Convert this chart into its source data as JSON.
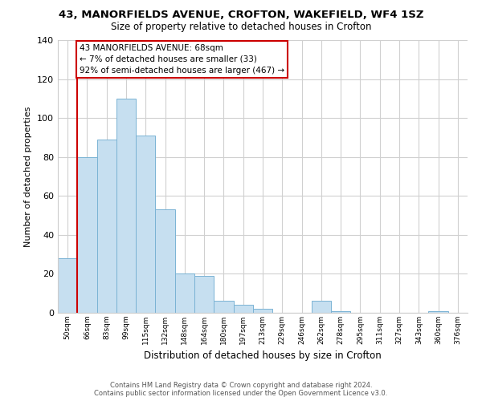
{
  "title": "43, MANORFIELDS AVENUE, CROFTON, WAKEFIELD, WF4 1SZ",
  "subtitle": "Size of property relative to detached houses in Crofton",
  "xlabel": "Distribution of detached houses by size in Crofton",
  "ylabel": "Number of detached properties",
  "bar_color": "#c6dff0",
  "bar_edge_color": "#7ab3d4",
  "bin_labels": [
    "50sqm",
    "66sqm",
    "83sqm",
    "99sqm",
    "115sqm",
    "132sqm",
    "148sqm",
    "164sqm",
    "180sqm",
    "197sqm",
    "213sqm",
    "229sqm",
    "246sqm",
    "262sqm",
    "278sqm",
    "295sqm",
    "311sqm",
    "327sqm",
    "343sqm",
    "360sqm",
    "376sqm"
  ],
  "bar_heights": [
    28,
    80,
    89,
    110,
    91,
    53,
    20,
    19,
    6,
    4,
    2,
    0,
    0,
    6,
    1,
    0,
    0,
    0,
    0,
    1,
    0
  ],
  "ylim": [
    0,
    140
  ],
  "yticks": [
    0,
    20,
    40,
    60,
    80,
    100,
    120,
    140
  ],
  "property_line_x": 1,
  "annotation_title": "43 MANORFIELDS AVENUE: 68sqm",
  "annotation_line1": "← 7% of detached houses are smaller (33)",
  "annotation_line2": "92% of semi-detached houses are larger (467) →",
  "annotation_box_color": "#ffffff",
  "annotation_border_color": "#cc0000",
  "vline_color": "#cc0000",
  "footer_line1": "Contains HM Land Registry data © Crown copyright and database right 2024.",
  "footer_line2": "Contains public sector information licensed under the Open Government Licence v3.0."
}
